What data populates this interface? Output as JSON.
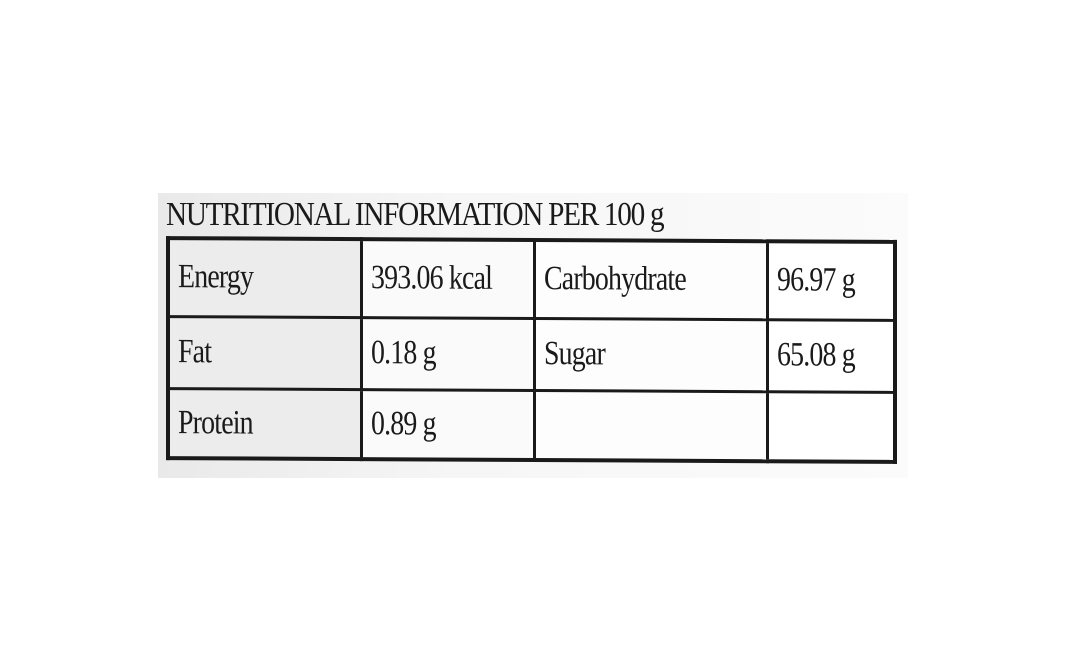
{
  "label": {
    "title": "NUTRITIONAL INFORMATION PER 100 g",
    "rows": [
      [
        "Energy",
        "393.06 kcal",
        "Carbohydrate",
        "96.97 g"
      ],
      [
        "Fat",
        "0.18 g",
        "Sugar",
        "65.08 g"
      ],
      [
        "Protein",
        "0.89 g",
        "",
        ""
      ]
    ]
  }
}
